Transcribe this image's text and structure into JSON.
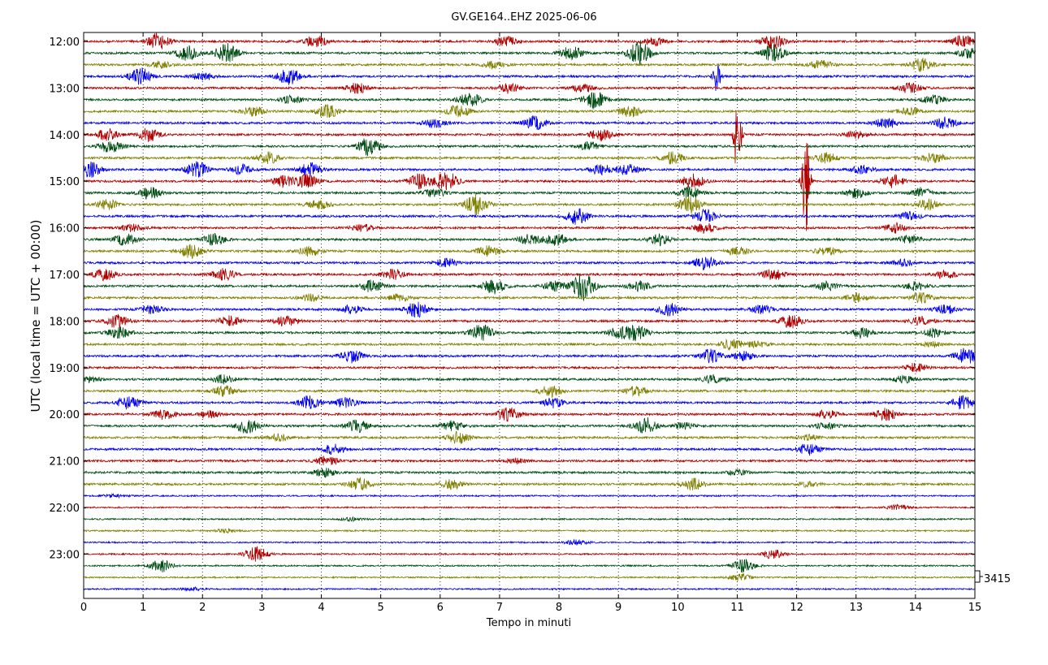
{
  "chart_data": {
    "type": "line",
    "title": "GV.GE164..EHZ 2025-06-06",
    "xlabel": "Tempo in minuti",
    "ylabel": "UTC (local time = UTC + 00:00)",
    "x_range": [
      0,
      15
    ],
    "x_ticks": [
      "0",
      "1",
      "2",
      "3",
      "4",
      "5",
      "6",
      "7",
      "8",
      "9",
      "10",
      "11",
      "12",
      "13",
      "14",
      "15"
    ],
    "grid": true,
    "grid_style": "dotted vertical",
    "scale_label": "3415",
    "hour_labels": [
      "12:00",
      "13:00",
      "14:00",
      "15:00",
      "16:00",
      "17:00",
      "18:00",
      "19:00",
      "20:00",
      "21:00",
      "22:00",
      "23:00"
    ],
    "trace_colors": [
      "#b00000",
      "#004d14",
      "#808000",
      "#0000ee"
    ],
    "traces_per_hour": 4,
    "trace_count": 48,
    "trace_interval_minutes": 15,
    "events": [
      {
        "trace": 0,
        "minute": 1.25,
        "amp": 10
      },
      {
        "trace": 0,
        "minute": 3.9,
        "amp": 7
      },
      {
        "trace": 0,
        "minute": 7.1,
        "amp": 6
      },
      {
        "trace": 0,
        "minute": 9.6,
        "amp": 5
      },
      {
        "trace": 0,
        "minute": 11.6,
        "amp": 9
      },
      {
        "trace": 0,
        "minute": 14.8,
        "amp": 7
      },
      {
        "trace": 1,
        "minute": 1.75,
        "amp": 9
      },
      {
        "trace": 1,
        "minute": 2.4,
        "amp": 12
      },
      {
        "trace": 1,
        "minute": 8.2,
        "amp": 8
      },
      {
        "trace": 1,
        "minute": 9.35,
        "amp": 15
      },
      {
        "trace": 1,
        "minute": 11.6,
        "amp": 10
      },
      {
        "trace": 1,
        "minute": 14.9,
        "amp": 6
      },
      {
        "trace": 2,
        "minute": 1.3,
        "amp": 4
      },
      {
        "trace": 2,
        "minute": 6.9,
        "amp": 4
      },
      {
        "trace": 2,
        "minute": 12.4,
        "amp": 5
      },
      {
        "trace": 2,
        "minute": 14.1,
        "amp": 8
      },
      {
        "trace": 3,
        "minute": 0.95,
        "amp": 10
      },
      {
        "trace": 3,
        "minute": 2.0,
        "amp": 5
      },
      {
        "trace": 3,
        "minute": 3.45,
        "amp": 10
      },
      {
        "trace": 3,
        "minute": 10.65,
        "amp": 22
      },
      {
        "trace": 4,
        "minute": 4.6,
        "amp": 6
      },
      {
        "trace": 4,
        "minute": 7.15,
        "amp": 6
      },
      {
        "trace": 4,
        "minute": 8.4,
        "amp": 5
      },
      {
        "trace": 4,
        "minute": 13.9,
        "amp": 6
      },
      {
        "trace": 5,
        "minute": 3.5,
        "amp": 5
      },
      {
        "trace": 5,
        "minute": 6.5,
        "amp": 9
      },
      {
        "trace": 5,
        "minute": 8.6,
        "amp": 10
      },
      {
        "trace": 5,
        "minute": 14.3,
        "amp": 5
      },
      {
        "trace": 6,
        "minute": 2.85,
        "amp": 6
      },
      {
        "trace": 6,
        "minute": 4.1,
        "amp": 8
      },
      {
        "trace": 6,
        "minute": 6.3,
        "amp": 8
      },
      {
        "trace": 6,
        "minute": 9.2,
        "amp": 7
      },
      {
        "trace": 6,
        "minute": 13.9,
        "amp": 5
      },
      {
        "trace": 7,
        "minute": 5.9,
        "amp": 6
      },
      {
        "trace": 7,
        "minute": 7.6,
        "amp": 8
      },
      {
        "trace": 7,
        "minute": 13.5,
        "amp": 7
      },
      {
        "trace": 7,
        "minute": 14.5,
        "amp": 7
      },
      {
        "trace": 8,
        "minute": 0.4,
        "amp": 7
      },
      {
        "trace": 8,
        "minute": 1.1,
        "amp": 8
      },
      {
        "trace": 8,
        "minute": 8.7,
        "amp": 7
      },
      {
        "trace": 8,
        "minute": 11.0,
        "amp": 50
      },
      {
        "trace": 8,
        "minute": 13.0,
        "amp": 4
      },
      {
        "trace": 9,
        "minute": 0.45,
        "amp": 8
      },
      {
        "trace": 9,
        "minute": 4.8,
        "amp": 11
      },
      {
        "trace": 9,
        "minute": 8.5,
        "amp": 5
      },
      {
        "trace": 10,
        "minute": 3.1,
        "amp": 7
      },
      {
        "trace": 10,
        "minute": 9.9,
        "amp": 7
      },
      {
        "trace": 10,
        "minute": 12.5,
        "amp": 6
      },
      {
        "trace": 10,
        "minute": 14.3,
        "amp": 6
      },
      {
        "trace": 11,
        "minute": 0.1,
        "amp": 9
      },
      {
        "trace": 11,
        "minute": 1.9,
        "amp": 9
      },
      {
        "trace": 11,
        "minute": 2.65,
        "amp": 6
      },
      {
        "trace": 11,
        "minute": 3.8,
        "amp": 8
      },
      {
        "trace": 11,
        "minute": 8.7,
        "amp": 6
      },
      {
        "trace": 11,
        "minute": 9.15,
        "amp": 6
      },
      {
        "trace": 11,
        "minute": 13.1,
        "amp": 5
      },
      {
        "trace": 12,
        "minute": 3.35,
        "amp": 7
      },
      {
        "trace": 12,
        "minute": 3.75,
        "amp": 8
      },
      {
        "trace": 12,
        "minute": 5.65,
        "amp": 9
      },
      {
        "trace": 12,
        "minute": 6.1,
        "amp": 12
      },
      {
        "trace": 12,
        "minute": 10.25,
        "amp": 9
      },
      {
        "trace": 12,
        "minute": 12.15,
        "amp": 70
      },
      {
        "trace": 12,
        "minute": 13.6,
        "amp": 8
      },
      {
        "trace": 13,
        "minute": 1.1,
        "amp": 7
      },
      {
        "trace": 13,
        "minute": 5.9,
        "amp": 5
      },
      {
        "trace": 13,
        "minute": 10.2,
        "amp": 7
      },
      {
        "trace": 13,
        "minute": 13.0,
        "amp": 6
      },
      {
        "trace": 13,
        "minute": 14.1,
        "amp": 6
      },
      {
        "trace": 14,
        "minute": 0.4,
        "amp": 6
      },
      {
        "trace": 14,
        "minute": 3.95,
        "amp": 5
      },
      {
        "trace": 14,
        "minute": 6.6,
        "amp": 12
      },
      {
        "trace": 14,
        "minute": 10.2,
        "amp": 10
      },
      {
        "trace": 14,
        "minute": 14.2,
        "amp": 6
      },
      {
        "trace": 15,
        "minute": 8.3,
        "amp": 10
      },
      {
        "trace": 15,
        "minute": 10.45,
        "amp": 8
      },
      {
        "trace": 15,
        "minute": 13.9,
        "amp": 5
      },
      {
        "trace": 16,
        "minute": 0.8,
        "amp": 4
      },
      {
        "trace": 16,
        "minute": 4.7,
        "amp": 4
      },
      {
        "trace": 16,
        "minute": 10.45,
        "amp": 6
      },
      {
        "trace": 16,
        "minute": 13.65,
        "amp": 6
      },
      {
        "trace": 17,
        "minute": 0.7,
        "amp": 7
      },
      {
        "trace": 17,
        "minute": 2.2,
        "amp": 7
      },
      {
        "trace": 17,
        "minute": 7.5,
        "amp": 6
      },
      {
        "trace": 17,
        "minute": 7.95,
        "amp": 7
      },
      {
        "trace": 17,
        "minute": 9.7,
        "amp": 7
      },
      {
        "trace": 17,
        "minute": 13.9,
        "amp": 5
      },
      {
        "trace": 18,
        "minute": 1.8,
        "amp": 8
      },
      {
        "trace": 18,
        "minute": 3.8,
        "amp": 6
      },
      {
        "trace": 18,
        "minute": 6.8,
        "amp": 6
      },
      {
        "trace": 18,
        "minute": 11.0,
        "amp": 5
      },
      {
        "trace": 18,
        "minute": 12.5,
        "amp": 5
      },
      {
        "trace": 19,
        "minute": 6.1,
        "amp": 5
      },
      {
        "trace": 19,
        "minute": 10.45,
        "amp": 8
      },
      {
        "trace": 19,
        "minute": 13.8,
        "amp": 4
      },
      {
        "trace": 20,
        "minute": 0.35,
        "amp": 7
      },
      {
        "trace": 20,
        "minute": 2.35,
        "amp": 7
      },
      {
        "trace": 20,
        "minute": 5.2,
        "amp": 6
      },
      {
        "trace": 20,
        "minute": 11.6,
        "amp": 7
      },
      {
        "trace": 20,
        "minute": 14.5,
        "amp": 5
      },
      {
        "trace": 21,
        "minute": 4.85,
        "amp": 7
      },
      {
        "trace": 21,
        "minute": 6.9,
        "amp": 9
      },
      {
        "trace": 21,
        "minute": 7.9,
        "amp": 6
      },
      {
        "trace": 21,
        "minute": 8.4,
        "amp": 17
      },
      {
        "trace": 21,
        "minute": 9.35,
        "amp": 6
      },
      {
        "trace": 21,
        "minute": 12.5,
        "amp": 5
      },
      {
        "trace": 21,
        "minute": 14.0,
        "amp": 5
      },
      {
        "trace": 22,
        "minute": 3.8,
        "amp": 4
      },
      {
        "trace": 22,
        "minute": 5.3,
        "amp": 4
      },
      {
        "trace": 22,
        "minute": 13.0,
        "amp": 5
      },
      {
        "trace": 22,
        "minute": 14.1,
        "amp": 6
      },
      {
        "trace": 23,
        "minute": 1.15,
        "amp": 5
      },
      {
        "trace": 23,
        "minute": 4.5,
        "amp": 5
      },
      {
        "trace": 23,
        "minute": 5.6,
        "amp": 9
      },
      {
        "trace": 23,
        "minute": 9.85,
        "amp": 8
      },
      {
        "trace": 23,
        "minute": 11.4,
        "amp": 5
      },
      {
        "trace": 23,
        "minute": 14.5,
        "amp": 5
      },
      {
        "trace": 24,
        "minute": 0.55,
        "amp": 8
      },
      {
        "trace": 24,
        "minute": 2.45,
        "amp": 6
      },
      {
        "trace": 24,
        "minute": 3.4,
        "amp": 6
      },
      {
        "trace": 24,
        "minute": 11.9,
        "amp": 8
      },
      {
        "trace": 24,
        "minute": 14.1,
        "amp": 5
      },
      {
        "trace": 25,
        "minute": 0.6,
        "amp": 7
      },
      {
        "trace": 25,
        "minute": 6.7,
        "amp": 10
      },
      {
        "trace": 25,
        "minute": 9.0,
        "amp": 6
      },
      {
        "trace": 25,
        "minute": 9.3,
        "amp": 9
      },
      {
        "trace": 25,
        "minute": 13.1,
        "amp": 6
      },
      {
        "trace": 25,
        "minute": 14.3,
        "amp": 5
      },
      {
        "trace": 26,
        "minute": 10.9,
        "amp": 6
      },
      {
        "trace": 26,
        "minute": 11.3,
        "amp": 4
      },
      {
        "trace": 26,
        "minute": 14.3,
        "amp": 3
      },
      {
        "trace": 27,
        "minute": 4.5,
        "amp": 8
      },
      {
        "trace": 27,
        "minute": 10.55,
        "amp": 8
      },
      {
        "trace": 27,
        "minute": 11.1,
        "amp": 5
      },
      {
        "trace": 27,
        "minute": 14.85,
        "amp": 9
      },
      {
        "trace": 28,
        "minute": 14.0,
        "amp": 5
      },
      {
        "trace": 29,
        "minute": 0.1,
        "amp": 3
      },
      {
        "trace": 29,
        "minute": 2.35,
        "amp": 5
      },
      {
        "trace": 29,
        "minute": 10.6,
        "amp": 5
      },
      {
        "trace": 29,
        "minute": 13.8,
        "amp": 4
      },
      {
        "trace": 30,
        "minute": 2.35,
        "amp": 6
      },
      {
        "trace": 30,
        "minute": 7.85,
        "amp": 7
      },
      {
        "trace": 30,
        "minute": 9.3,
        "amp": 6
      },
      {
        "trace": 31,
        "minute": 0.75,
        "amp": 8
      },
      {
        "trace": 31,
        "minute": 3.8,
        "amp": 8
      },
      {
        "trace": 31,
        "minute": 4.4,
        "amp": 6
      },
      {
        "trace": 31,
        "minute": 7.9,
        "amp": 6
      },
      {
        "trace": 31,
        "minute": 14.8,
        "amp": 8
      },
      {
        "trace": 32,
        "minute": 1.35,
        "amp": 6
      },
      {
        "trace": 32,
        "minute": 2.1,
        "amp": 4
      },
      {
        "trace": 32,
        "minute": 7.15,
        "amp": 8
      },
      {
        "trace": 32,
        "minute": 12.5,
        "amp": 5
      },
      {
        "trace": 32,
        "minute": 13.5,
        "amp": 7
      },
      {
        "trace": 33,
        "minute": 2.75,
        "amp": 9
      },
      {
        "trace": 33,
        "minute": 4.6,
        "amp": 7
      },
      {
        "trace": 33,
        "minute": 6.2,
        "amp": 6
      },
      {
        "trace": 33,
        "minute": 9.45,
        "amp": 10
      },
      {
        "trace": 33,
        "minute": 10.1,
        "amp": 4
      },
      {
        "trace": 33,
        "minute": 12.5,
        "amp": 4
      },
      {
        "trace": 34,
        "minute": 3.3,
        "amp": 4
      },
      {
        "trace": 34,
        "minute": 6.3,
        "amp": 7
      },
      {
        "trace": 34,
        "minute": 12.2,
        "amp": 3
      },
      {
        "trace": 35,
        "minute": 4.2,
        "amp": 6
      },
      {
        "trace": 35,
        "minute": 12.2,
        "amp": 7
      },
      {
        "trace": 36,
        "minute": 4.1,
        "amp": 6
      },
      {
        "trace": 36,
        "minute": 7.3,
        "amp": 3
      },
      {
        "trace": 37,
        "minute": 4.05,
        "amp": 5
      },
      {
        "trace": 37,
        "minute": 11.0,
        "amp": 3
      },
      {
        "trace": 38,
        "minute": 4.65,
        "amp": 7
      },
      {
        "trace": 38,
        "minute": 6.2,
        "amp": 6
      },
      {
        "trace": 38,
        "minute": 10.25,
        "amp": 7
      },
      {
        "trace": 38,
        "minute": 12.2,
        "amp": 3
      },
      {
        "trace": 39,
        "minute": 0.5,
        "amp": 2
      },
      {
        "trace": 40,
        "minute": 13.7,
        "amp": 3
      },
      {
        "trace": 41,
        "minute": 4.5,
        "amp": 2
      },
      {
        "trace": 42,
        "minute": 2.4,
        "amp": 2
      },
      {
        "trace": 43,
        "minute": 8.3,
        "amp": 3
      },
      {
        "trace": 44,
        "minute": 2.9,
        "amp": 9
      },
      {
        "trace": 44,
        "minute": 11.6,
        "amp": 6
      },
      {
        "trace": 45,
        "minute": 1.3,
        "amp": 8
      },
      {
        "trace": 45,
        "minute": 11.1,
        "amp": 8
      },
      {
        "trace": 46,
        "minute": 11.05,
        "amp": 4
      },
      {
        "trace": 47,
        "minute": 1.8,
        "amp": 2
      }
    ]
  }
}
